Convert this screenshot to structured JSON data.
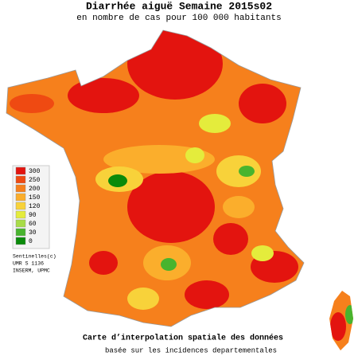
{
  "header": {
    "title": "Diarrhée aiguë Semaine 2015s02",
    "subtitle": "en nombre de cas pour 100 000 habitants"
  },
  "legend": {
    "items": [
      {
        "value": 300,
        "color": "#e3140f"
      },
      {
        "value": 250,
        "color": "#ef4a12"
      },
      {
        "value": 200,
        "color": "#f6801c"
      },
      {
        "value": 150,
        "color": "#fbae2c"
      },
      {
        "value": 120,
        "color": "#f8d23a"
      },
      {
        "value": 90,
        "color": "#e4ec3c"
      },
      {
        "value": 60,
        "color": "#a8dc48"
      },
      {
        "value": 30,
        "color": "#48b42e"
      },
      {
        "value": 0,
        "color": "#0a8a0a"
      }
    ]
  },
  "credits": [
    "Sentinelles(c)",
    "UMR S 1136",
    "INSERM, UPMC"
  ],
  "footer": {
    "title": "Carte d’interpolation spatiale des données",
    "subtitle": "basée sur les incidences departementales"
  }
}
